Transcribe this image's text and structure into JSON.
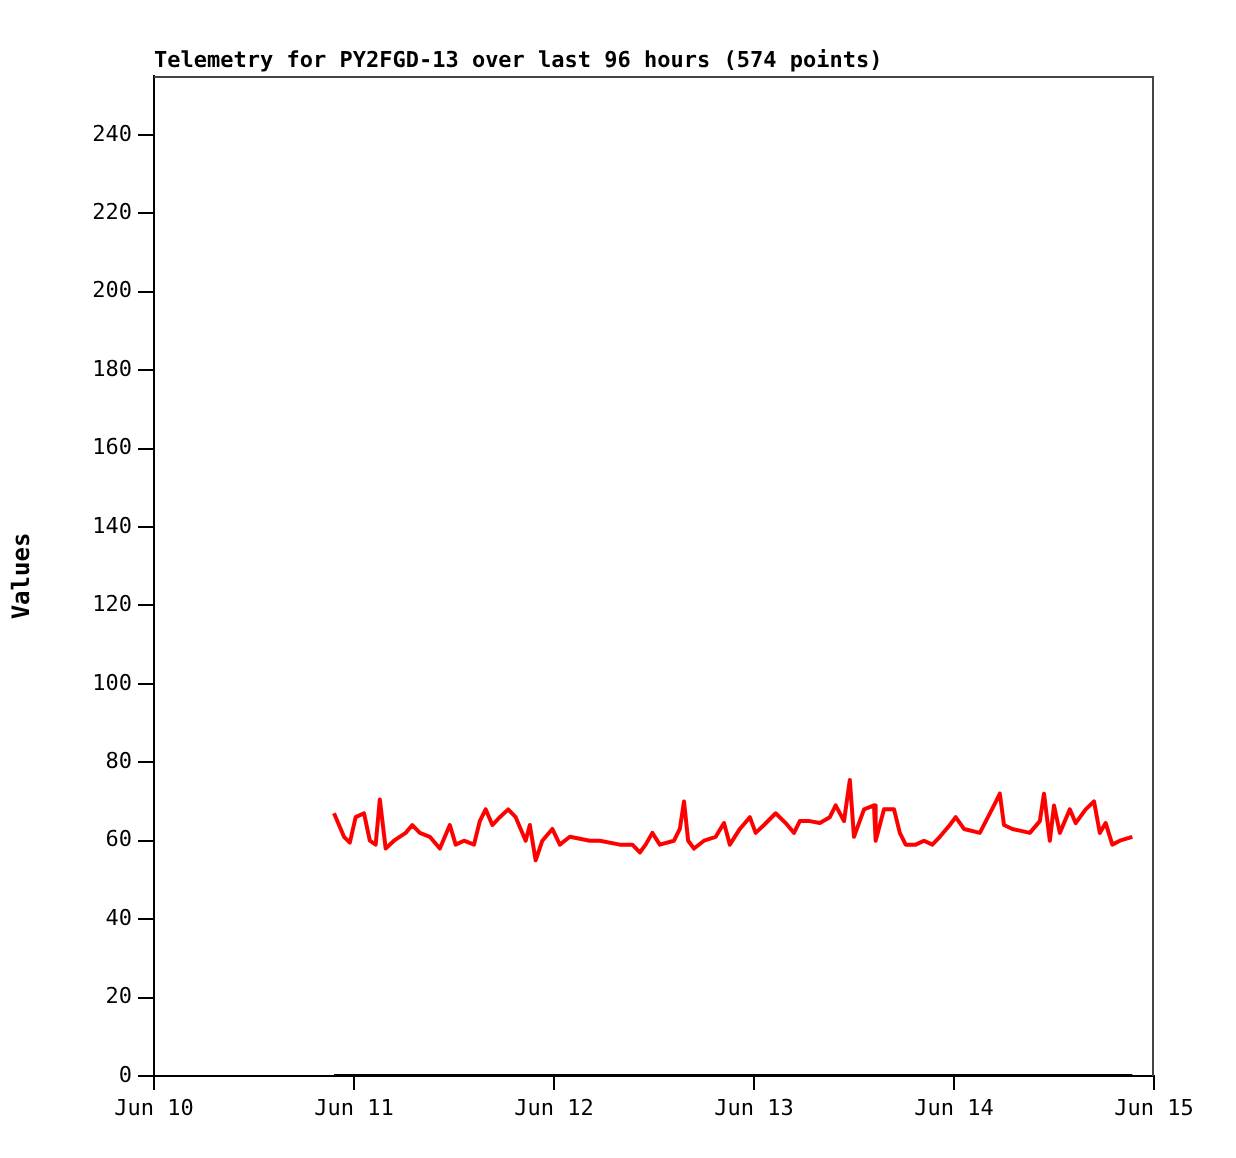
{
  "chart_data": {
    "type": "line",
    "title": "Telemetry for PY2FGD-13 over last 96 hours (574 points)",
    "ylabel": "Values",
    "xlim": [
      "--06-10",
      "--06-15"
    ],
    "xticks": [
      {
        "value": "--06-10",
        "label": "Jun 10"
      },
      {
        "value": "--06-11",
        "label": "Jun 11"
      },
      {
        "value": "--06-12",
        "label": "Jun 12"
      },
      {
        "value": "--06-13",
        "label": "Jun 13"
      },
      {
        "value": "--06-14",
        "label": "Jun 14"
      },
      {
        "value": "--06-15",
        "label": "Jun 15"
      }
    ],
    "ylim": [
      0,
      255
    ],
    "yticks": [
      0,
      20,
      40,
      60,
      80,
      100,
      120,
      140,
      160,
      180,
      200,
      220,
      240
    ],
    "grid": false,
    "legend": false,
    "marker": "none",
    "line_style": "solid",
    "series": [
      {
        "color": "#ff0000",
        "x": [
          "--06-10T21:36",
          "--06-10T22:48",
          "--06-10T23:30",
          "--06-11T00:12",
          "--06-11T01:12",
          "--06-11T01:54",
          "--06-11T02:36",
          "--06-11T03:06",
          "--06-11T03:48",
          "--06-11T04:48",
          "--06-11T06:12",
          "--06-11T07:00",
          "--06-11T07:54",
          "--06-11T09:06",
          "--06-11T10:18",
          "--06-11T11:30",
          "--06-11T12:12",
          "--06-11T13:12",
          "--06-11T14:24",
          "--06-11T15:06",
          "--06-11T15:48",
          "--06-11T16:36",
          "--06-11T17:30",
          "--06-11T18:30",
          "--06-11T19:24",
          "--06-11T20:36",
          "--06-11T21:06",
          "--06-11T21:48",
          "--06-11T22:36",
          "--06-11T23:48",
          "--06-12T00:42",
          "--06-12T01:54",
          "--06-12T04:18",
          "--06-12T05:30",
          "--06-12T07:54",
          "--06-12T09:24",
          "--06-12T10:18",
          "--06-12T11:00",
          "--06-12T11:48",
          "--06-12T12:42",
          "--06-12T14:24",
          "--06-12T15:06",
          "--06-12T15:36",
          "--06-12T16:06",
          "--06-12T16:48",
          "--06-12T18:00",
          "--06-12T19:24",
          "--06-12T20:24",
          "--06-12T21:06",
          "--06-12T22:18",
          "--06-12T23:30",
          "--06-13T00:12",
          "--06-13T01:12",
          "--06-13T02:36",
          "--06-13T03:48",
          "--06-13T04:48",
          "--06-13T05:30",
          "--06-13T06:42",
          "--06-13T07:54",
          "--06-13T09:06",
          "--06-13T09:48",
          "--06-13T10:48",
          "--06-13T11:30",
          "--06-13T12:00",
          "--06-13T13:12",
          "--06-13T14:24",
          "--06-13T14:36",
          "--06-13T15:36",
          "--06-13T16:48",
          "--06-13T17:30",
          "--06-13T18:12",
          "--06-13T19:24",
          "--06-13T20:24",
          "--06-13T21:24",
          "--06-13T22:18",
          "--06-13T23:30",
          "--06-14T00:12",
          "--06-14T01:12",
          "--06-14T03:06",
          "--06-14T04:48",
          "--06-14T05:30",
          "--06-14T06:00",
          "--06-14T07:00",
          "--06-14T09:06",
          "--06-14T10:18",
          "--06-14T10:48",
          "--06-14T11:30",
          "--06-14T12:00",
          "--06-14T12:42",
          "--06-14T13:54",
          "--06-14T14:36",
          "--06-14T15:48",
          "--06-14T16:48",
          "--06-14T17:30",
          "--06-14T18:12",
          "--06-14T19:00",
          "--06-14T19:54",
          "--06-14T21:24"
        ],
        "values": [
          67,
          61,
          59.5,
          66,
          67,
          60,
          59,
          70.5,
          58,
          60,
          62,
          64,
          62,
          61,
          58,
          64,
          59,
          60,
          59,
          65,
          68,
          64,
          66,
          68,
          66,
          60,
          64,
          55,
          60,
          63,
          59,
          61,
          60,
          60,
          59,
          59,
          57,
          59,
          62,
          59,
          60,
          63,
          70,
          60,
          58,
          60,
          61,
          64.5,
          59,
          63,
          66,
          62,
          64,
          67,
          64.5,
          62,
          65,
          65,
          64.5,
          66,
          69,
          65,
          75.5,
          61,
          68,
          69,
          60,
          68,
          68,
          62,
          59,
          59,
          60,
          59,
          61,
          64,
          66,
          63,
          62,
          69,
          72,
          64,
          63,
          62,
          65,
          72,
          60,
          69,
          62,
          68,
          64.5,
          68,
          70,
          62,
          64.5,
          59,
          60,
          61
        ]
      },
      {
        "color": "#000000",
        "x": [
          "--06-10T21:36",
          "--06-14T21:24"
        ],
        "values": [
          0,
          0
        ]
      }
    ]
  }
}
